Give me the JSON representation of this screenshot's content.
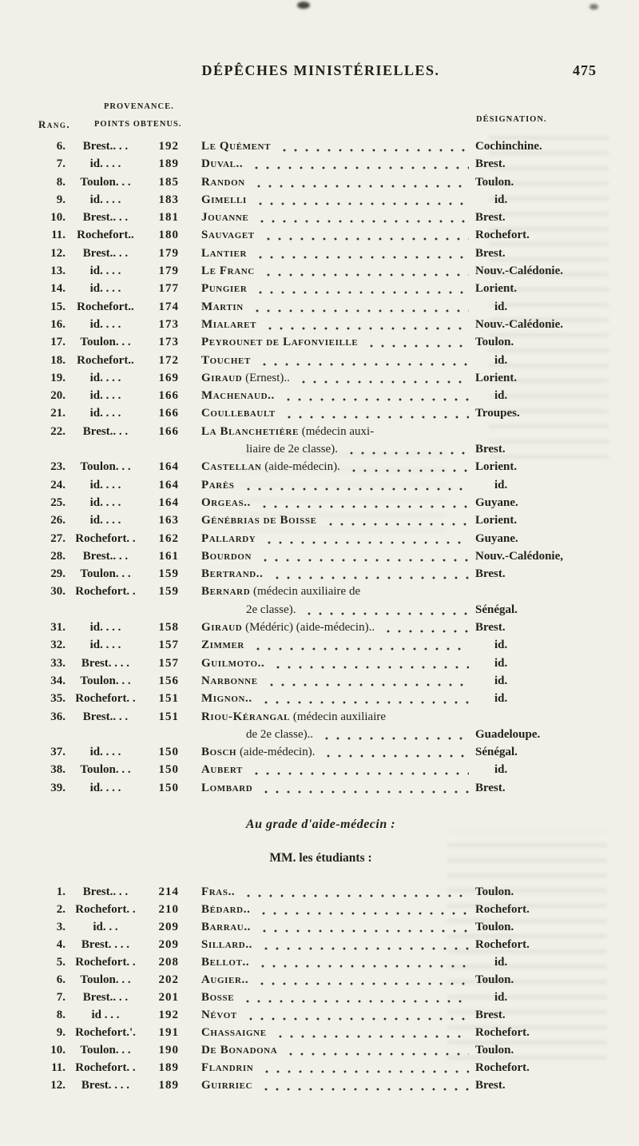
{
  "header": {
    "title": "DÉPÊCHES MINISTÉRIELLES.",
    "page_number": "475"
  },
  "column_headers": {
    "rang": "Rang.",
    "provenance": "PROVENANCE.",
    "points": "POINTS OBTENUS.",
    "designation": "DÉSIGNATION."
  },
  "colors": {
    "paper": "#f1efe8",
    "ink": "#221f1a"
  },
  "classement_table": {
    "rows": [
      {
        "rank": "6.",
        "prov": "Brest.. . .",
        "points": "192",
        "name": "Le Quément",
        "suffix": "",
        "line2": "",
        "desig": "Cochinchine."
      },
      {
        "rank": "7.",
        "prov": "id. . . .",
        "points": "189",
        "name": "Duval..",
        "suffix": "",
        "line2": "",
        "desig": "Brest."
      },
      {
        "rank": "8.",
        "prov": "Toulon. . .",
        "points": "185",
        "name": "Randon",
        "suffix": "",
        "line2": "",
        "desig": "Toulon."
      },
      {
        "rank": "9.",
        "prov": "id. . . .",
        "points": "183",
        "name": "Gimelli",
        "suffix": "",
        "line2": "",
        "desig": "id."
      },
      {
        "rank": "10.",
        "prov": "Brest.. . .",
        "points": "181",
        "name": "Jouanne",
        "suffix": "",
        "line2": "",
        "desig": "Brest."
      },
      {
        "rank": "11.",
        "prov": "Rochefort..",
        "points": "180",
        "name": "Sauvaget",
        "suffix": "",
        "line2": "",
        "desig": "Rochefort."
      },
      {
        "rank": "12.",
        "prov": "Brest.. . .",
        "points": "179",
        "name": "Lantier",
        "suffix": "",
        "line2": "",
        "desig": "Brest."
      },
      {
        "rank": "13.",
        "prov": "id. . . .",
        "points": "179",
        "name": "Le Franc",
        "suffix": "",
        "line2": "",
        "desig": "Nouv.-Calédonie."
      },
      {
        "rank": "14.",
        "prov": "id. . . .",
        "points": "177",
        "name": "Pungier",
        "suffix": "",
        "line2": "",
        "desig": "Lorient."
      },
      {
        "rank": "15.",
        "prov": "Rochefort..",
        "points": "174",
        "name": "Martin",
        "suffix": "",
        "line2": "",
        "desig": "id."
      },
      {
        "rank": "16.",
        "prov": "id. . . .",
        "points": "173",
        "name": "Mialaret",
        "suffix": "",
        "line2": "",
        "desig": "Nouv.-Calédonie."
      },
      {
        "rank": "17.",
        "prov": "Toulon. . .",
        "points": "173",
        "name": "Peyrounet de Lafonvieille",
        "suffix": "",
        "line2": "",
        "desig": "Toulon."
      },
      {
        "rank": "18.",
        "prov": "Rochefort..",
        "points": "172",
        "name": "Touchet",
        "suffix": "",
        "line2": "",
        "desig": "id."
      },
      {
        "rank": "19.",
        "prov": "id. . . .",
        "points": "169",
        "name": "Giraud",
        "suffix": " (Ernest)..",
        "line2": "",
        "desig": "Lorient."
      },
      {
        "rank": "20.",
        "prov": "id. . . .",
        "points": "166",
        "name": "Machenaud..",
        "suffix": "",
        "line2": "",
        "desig": "id."
      },
      {
        "rank": "21.",
        "prov": "id. . . .",
        "points": "166",
        "name": "Coullebault",
        "suffix": "",
        "line2": "",
        "desig": "Troupes."
      },
      {
        "rank": "22.",
        "prov": "Brest.. . .",
        "points": "166",
        "name": "La Blanchetière",
        "suffix": " (médecin auxi-",
        "line2": "liaire de 2e classe).",
        "desig": "Brest."
      },
      {
        "rank": "23.",
        "prov": "Toulon. . .",
        "points": "164",
        "name": "Castellan",
        "suffix": " (aide-médecin).",
        "line2": "",
        "desig": "Lorient."
      },
      {
        "rank": "24.",
        "prov": "id. . . .",
        "points": "164",
        "name": "Parès",
        "suffix": "",
        "line2": "",
        "desig": "id."
      },
      {
        "rank": "25.",
        "prov": "id. . . .",
        "points": "164",
        "name": "Orgeas..",
        "suffix": "",
        "line2": "",
        "desig": "Guyane."
      },
      {
        "rank": "26.",
        "prov": "id. . . .",
        "points": "163",
        "name": "Génébrias de Boisse",
        "suffix": "",
        "line2": "",
        "desig": "Lorient."
      },
      {
        "rank": "27.",
        "prov": "Rochefort. .",
        "points": "162",
        "name": "Pallardy",
        "suffix": "",
        "line2": "",
        "desig": "Guyane."
      },
      {
        "rank": "28.",
        "prov": "Brest.. . .",
        "points": "161",
        "name": "Bourdon",
        "suffix": "",
        "line2": "",
        "desig": "Nouv.-Calédonie,"
      },
      {
        "rank": "29.",
        "prov": "Toulon. . .",
        "points": "159",
        "name": "Bertrand..",
        "suffix": "",
        "line2": "",
        "desig": "Brest."
      },
      {
        "rank": "30.",
        "prov": "Rochefort. .",
        "points": "159",
        "name": "Bernard",
        "suffix": " (médecin auxiliaire de",
        "line2": "2e classe).",
        "desig": "Sénégal."
      },
      {
        "rank": "31.",
        "prov": "id. . . .",
        "points": "158",
        "name": "Giraud",
        "suffix": " (Médéric) (aide-médecin)..",
        "line2": "",
        "desig": "Brest."
      },
      {
        "rank": "32.",
        "prov": "id. . . .",
        "points": "157",
        "name": "Zimmer",
        "suffix": "",
        "line2": "",
        "desig": "id."
      },
      {
        "rank": "33.",
        "prov": "Brest. . . .",
        "points": "157",
        "name": "Guilmoto..",
        "suffix": "",
        "line2": "",
        "desig": "id."
      },
      {
        "rank": "34.",
        "prov": "Toulon. . .",
        "points": "156",
        "name": "Narbonne",
        "suffix": "",
        "line2": "",
        "desig": "id."
      },
      {
        "rank": "35.",
        "prov": "Rochefort. .",
        "points": "151",
        "name": "Mignon..",
        "suffix": "",
        "line2": "",
        "desig": "id."
      },
      {
        "rank": "36.",
        "prov": "Brest.. . .",
        "points": "151",
        "name": "Riou-Kérangal",
        "suffix": " (médecin auxiliaire",
        "line2": "de 2e classe)..",
        "desig": "Guadeloupe."
      },
      {
        "rank": "37.",
        "prov": "id. . . .",
        "points": "150",
        "name": "Bosch",
        "suffix": " (aide-médecin).",
        "line2": "",
        "desig": "Sénégal."
      },
      {
        "rank": "38.",
        "prov": "Toulon. . .",
        "points": "150",
        "name": "Aubert",
        "suffix": "",
        "line2": "",
        "desig": "id."
      },
      {
        "rank": "39.",
        "prov": "id. . . .",
        "points": "150",
        "name": "Lombard",
        "suffix": "",
        "line2": "",
        "desig": "Brest."
      }
    ]
  },
  "section": {
    "grade_heading": "Au grade d'aide-médecin :",
    "students_heading": "MM. les étudiants :"
  },
  "students_table": {
    "rows": [
      {
        "rank": "1.",
        "prov": "Brest.. . .",
        "points": "214",
        "name": "Fras..",
        "suffix": "",
        "line2": "",
        "desig": "Toulon."
      },
      {
        "rank": "2.",
        "prov": "Rochefort. .",
        "points": "210",
        "name": "Bédard..",
        "suffix": "",
        "line2": "",
        "desig": "Rochefort."
      },
      {
        "rank": "3.",
        "prov": "id.  . .",
        "points": "209",
        "name": "Barrau..",
        "suffix": "",
        "line2": "",
        "desig": "Toulon."
      },
      {
        "rank": "4.",
        "prov": "Brest. . . .",
        "points": "209",
        "name": "Sillard..",
        "suffix": "",
        "line2": "",
        "desig": "Rochefort."
      },
      {
        "rank": "5.",
        "prov": "Rochefort. .",
        "points": "208",
        "name": "Bellot..",
        "suffix": "",
        "line2": "",
        "desig": "id."
      },
      {
        "rank": "6.",
        "prov": "Toulon. . .",
        "points": "202",
        "name": "Augier..",
        "suffix": "",
        "line2": "",
        "desig": "Toulon."
      },
      {
        "rank": "7.",
        "prov": "Brest.. . .",
        "points": "201",
        "name": "Bosse",
        "suffix": "",
        "line2": "",
        "desig": "id."
      },
      {
        "rank": "8.",
        "prov": "id . . .",
        "points": "192",
        "name": "Névot",
        "suffix": "",
        "line2": "",
        "desig": "Brest."
      },
      {
        "rank": "9.",
        "prov": "Rochefort.'.",
        "points": "191",
        "name": "Chassaigne",
        "suffix": "",
        "line2": "",
        "desig": "Rochefort."
      },
      {
        "rank": "10.",
        "prov": "Toulon. . .",
        "points": "190",
        "name": "De Bonadona",
        "suffix": "",
        "line2": "",
        "desig": "Toulon."
      },
      {
        "rank": "11.",
        "prov": "Rochefort. .",
        "points": "189",
        "name": "Flandrin",
        "suffix": "",
        "line2": "",
        "desig": "Rochefort."
      },
      {
        "rank": "12.",
        "prov": "Brest. . . .",
        "points": "189",
        "name": "Guirriec",
        "suffix": "",
        "line2": "",
        "desig": "Brest."
      }
    ]
  }
}
